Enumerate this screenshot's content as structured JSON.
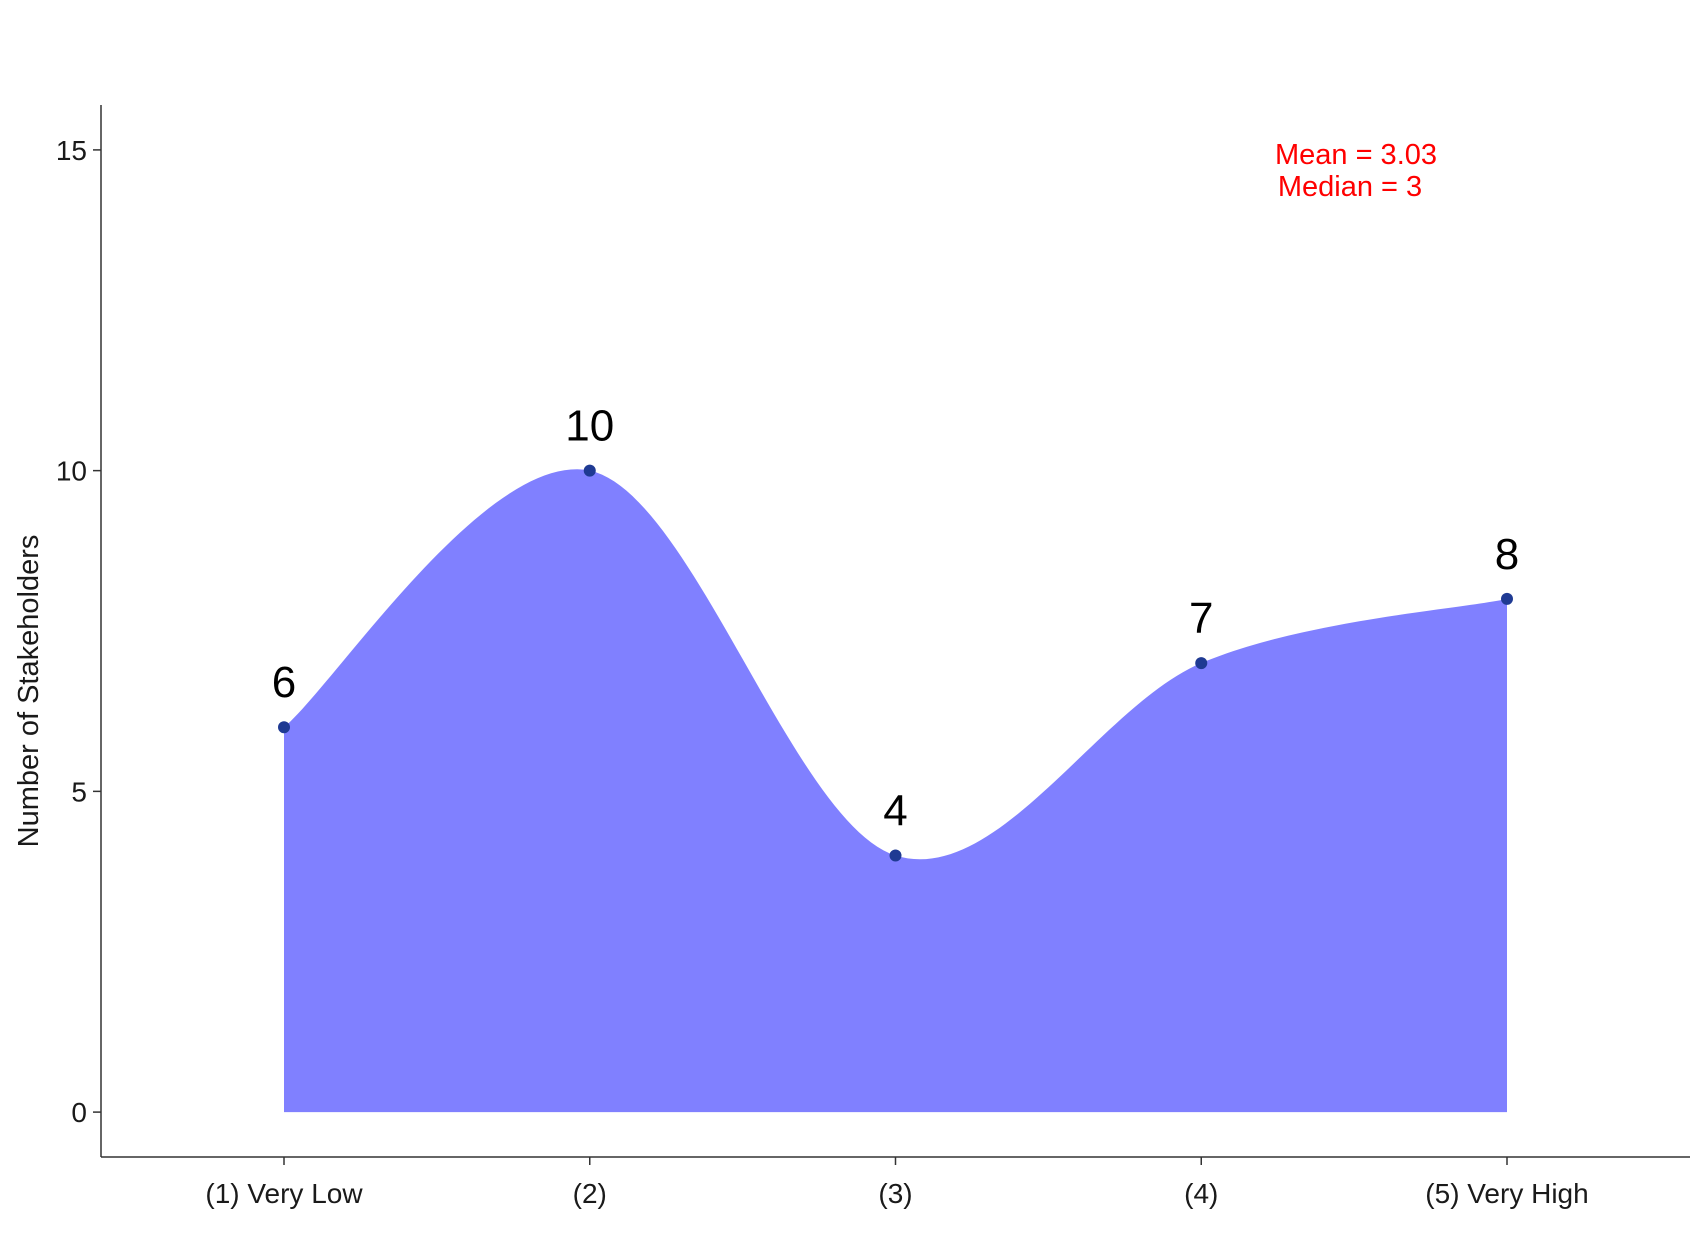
{
  "chart_data": {
    "type": "area",
    "categories": [
      "(1) Very Low",
      "(2)",
      "(3)",
      "(4)",
      "(5) Very High"
    ],
    "values": [
      6,
      10,
      4,
      7,
      8
    ],
    "data_labels": [
      "6",
      "10",
      "4",
      "7",
      "8"
    ],
    "ylabel": "Number of Stakeholders",
    "ylim": [
      -0.7,
      15.7
    ],
    "yticks": [
      0,
      5,
      10,
      15
    ],
    "ytick_labels": [
      "0",
      "5",
      "10",
      "15"
    ],
    "grid": false,
    "annotations": {
      "mean": "Mean = 3.03",
      "median": "Median = 3"
    },
    "colors": {
      "fill": "#8080ff",
      "point": "#1f3a93",
      "annotation": "#ff0000",
      "axis": "#333333"
    }
  }
}
